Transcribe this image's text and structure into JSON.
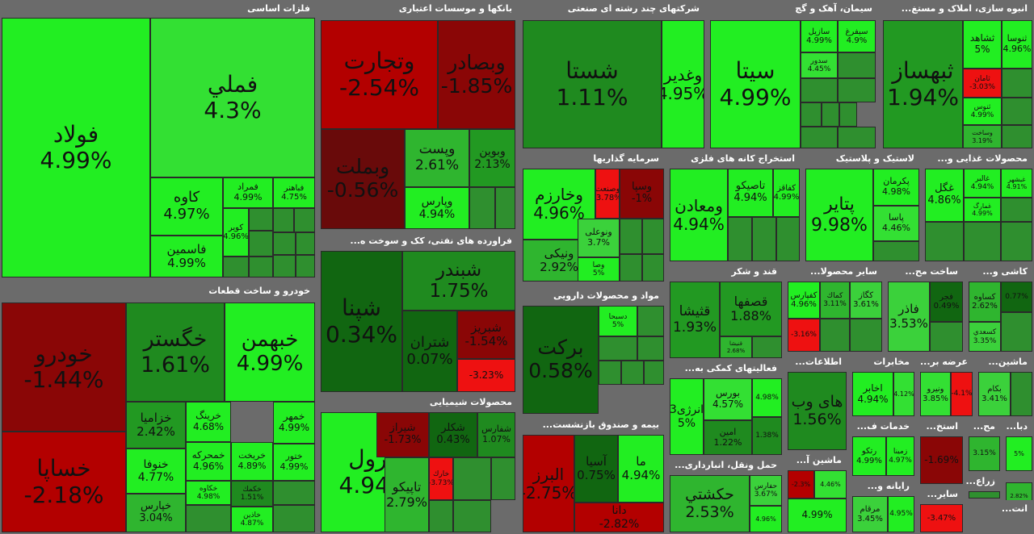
{
  "chart_data": {
    "type": "treemap",
    "sectors": [
      {
        "name": "فلزات اساسی",
        "tiles": [
          {
            "symbol": "فولاد",
            "change": 4.99
          },
          {
            "symbol": "فملي",
            "change": 4.3
          },
          {
            "symbol": "كاوه",
            "change": 4.97
          },
          {
            "symbol": "فاسمين",
            "change": 4.99
          },
          {
            "symbol": "فمراد",
            "change": 4.99
          },
          {
            "symbol": "فباهنر",
            "change": 4.75
          },
          {
            "symbol": "كوير",
            "change": 4.96
          },
          {
            "symbol": "",
            "change": null
          },
          {
            "symbol": "",
            "change": null
          },
          {
            "symbol": "",
            "change": null
          },
          {
            "symbol": "",
            "change": null
          },
          {
            "symbol": "",
            "change": null
          },
          {
            "symbol": "",
            "change": null
          },
          {
            "symbol": "",
            "change": null
          },
          {
            "symbol": "",
            "change": null
          },
          {
            "symbol": "",
            "change": null
          },
          {
            "symbol": "",
            "change": null
          }
        ]
      },
      {
        "name": "بانکها و موسسات اعتباری",
        "tiles": [
          {
            "symbol": "وتجارت",
            "change": -2.54
          },
          {
            "symbol": "وبصادر",
            "change": -1.85
          },
          {
            "symbol": "وبملت",
            "change": -0.56
          },
          {
            "symbol": "وپست",
            "change": 2.61
          },
          {
            "symbol": "وبوین",
            "change": 2.13
          },
          {
            "symbol": "وپارس",
            "change": 4.94
          },
          {
            "symbol": "",
            "change": null
          },
          {
            "symbol": "",
            "change": null
          }
        ]
      },
      {
        "name": "شرکتهای چند رشته ای صنعتی",
        "tiles": [
          {
            "symbol": "شستا",
            "change": 1.11
          },
          {
            "symbol": "وغدیر",
            "change": 4.95
          }
        ]
      },
      {
        "name": "سیمان، آهک و گچ",
        "tiles": [
          {
            "symbol": "سیتا",
            "change": 4.99
          },
          {
            "symbol": "سازیل",
            "change": 4.99
          },
          {
            "symbol": "سیفرغ",
            "change": 4.9
          },
          {
            "symbol": "سدور",
            "change": 4.45
          },
          {
            "symbol": "",
            "change": null
          },
          {
            "symbol": "",
            "change": null
          },
          {
            "symbol": "",
            "change": null
          },
          {
            "symbol": "",
            "change": null
          },
          {
            "symbol": "",
            "change": null
          },
          {
            "symbol": "",
            "change": null
          },
          {
            "symbol": "",
            "change": null
          },
          {
            "symbol": "",
            "change": null
          }
        ]
      },
      {
        "name": "انبوه سازی، املاک و مستغ...",
        "tiles": [
          {
            "symbol": "ثبهساز",
            "change": 1.94
          },
          {
            "symbol": "ثشاهد",
            "change": 5
          },
          {
            "symbol": "ثنوسا",
            "change": 4.96
          },
          {
            "symbol": "ثامان",
            "change": -3.03
          },
          {
            "symbol": "",
            "change": null
          },
          {
            "symbol": "ثنوس",
            "change": 4.99
          },
          {
            "symbol": "وساخت",
            "change": 3.19
          },
          {
            "symbol": "",
            "change": null
          },
          {
            "symbol": "",
            "change": null
          }
        ]
      },
      {
        "name": "سرمایه گذاریها",
        "tiles": [
          {
            "symbol": "وخارزم",
            "change": 4.96
          },
          {
            "symbol": "وصنعت",
            "change": -3.78
          },
          {
            "symbol": "وسپا",
            "change": -1.0
          },
          {
            "symbol": "ونیکی",
            "change": 2.92
          },
          {
            "symbol": "ونوعلی",
            "change": 3.7
          },
          {
            "symbol": "وصا",
            "change": 5
          },
          {
            "symbol": "",
            "change": null
          },
          {
            "symbol": "",
            "change": null
          },
          {
            "symbol": "",
            "change": null
          },
          {
            "symbol": "",
            "change": null
          }
        ]
      },
      {
        "name": "استخراج کانه های فلزی",
        "tiles": [
          {
            "symbol": "ومعادن",
            "change": 4.94
          },
          {
            "symbol": "تاصيكو",
            "change": 4.94
          },
          {
            "symbol": "كفاقز",
            "change": 4.99
          },
          {
            "symbol": "",
            "change": null
          },
          {
            "symbol": "",
            "change": null
          },
          {
            "symbol": "",
            "change": null
          }
        ]
      },
      {
        "name": "لاستیک و پلاستیک",
        "tiles": [
          {
            "symbol": "پتاير",
            "change": 9.98
          },
          {
            "symbol": "پكرمان",
            "change": 4.98
          },
          {
            "symbol": "پاسا",
            "change": 4.46
          },
          {
            "symbol": "",
            "change": null
          }
        ]
      },
      {
        "name": "محصولات غذایی و...",
        "tiles": [
          {
            "symbol": "غگل",
            "change": 4.86
          },
          {
            "symbol": "غالبر",
            "change": 4.94
          },
          {
            "symbol": "غبشهر",
            "change": 4.91
          },
          {
            "symbol": "غمارگ",
            "change": 4.99
          },
          {
            "symbol": "",
            "change": null
          },
          {
            "symbol": "",
            "change": null
          },
          {
            "symbol": "",
            "change": null
          },
          {
            "symbol": "",
            "change": null
          }
        ]
      },
      {
        "name": "خودرو و ساخت قطعات",
        "tiles": [
          {
            "symbol": "خودرو",
            "change": -1.44
          },
          {
            "symbol": "خساپا",
            "change": -2.18
          },
          {
            "symbol": "خگستر",
            "change": 1.61
          },
          {
            "symbol": "خبهمن",
            "change": 4.99
          },
          {
            "symbol": "خزامیا",
            "change": 2.42
          },
          {
            "symbol": "خرينگ",
            "change": 4.68
          },
          {
            "symbol": "خمهر",
            "change": 4.99
          },
          {
            "symbol": "خنوفا",
            "change": 4.77
          },
          {
            "symbol": "خمحركه",
            "change": 4.96
          },
          {
            "symbol": "خپارس",
            "change": 3.04
          },
          {
            "symbol": "خريخت",
            "change": 4.89
          },
          {
            "symbol": "خكمك",
            "change": 1.51
          },
          {
            "symbol": "ختور",
            "change": 4.99
          },
          {
            "symbol": "خاذين",
            "change": 4.87
          },
          {
            "symbol": "خكاوه",
            "change": 4.98
          },
          {
            "symbol": "",
            "change": null
          },
          {
            "symbol": "",
            "change": null
          },
          {
            "symbol": "",
            "change": null
          }
        ]
      },
      {
        "name": "فراورده های نفتی، کک و سوخت ه...",
        "tiles": [
          {
            "symbol": "شپنا",
            "change": 0.34
          },
          {
            "symbol": "شبندر",
            "change": 1.75
          },
          {
            "symbol": "شتران",
            "change": 0.07
          },
          {
            "symbol": "شبريز",
            "change": -1.54
          },
          {
            "symbol": "",
            "change": -3.23
          }
        ]
      },
      {
        "name": "مواد و محصولات دارویی",
        "tiles": [
          {
            "symbol": "بركت",
            "change": 0.58
          },
          {
            "symbol": "دسبحا",
            "change": 5
          },
          {
            "symbol": "",
            "change": null
          },
          {
            "symbol": "",
            "change": null
          },
          {
            "symbol": "",
            "change": null
          },
          {
            "symbol": "",
            "change": null
          },
          {
            "symbol": "",
            "change": null
          },
          {
            "symbol": "",
            "change": null
          }
        ]
      },
      {
        "name": "قند و شکر",
        "tiles": [
          {
            "symbol": "قثيشا",
            "change": 1.93
          },
          {
            "symbol": "قصفها",
            "change": 1.88
          },
          {
            "symbol": "قنيشا",
            "change": 2.68
          },
          {
            "symbol": "",
            "change": null
          }
        ]
      },
      {
        "name": "سایر محصولا...",
        "tiles": [
          {
            "symbol": "كفپارس",
            "change": 4.96
          },
          {
            "symbol": "كماك",
            "change": 3.11
          },
          {
            "symbol": "كگاز",
            "change": 3.61
          },
          {
            "symbol": "",
            "change": -3.16
          },
          {
            "symbol": "",
            "change": null
          },
          {
            "symbol": "",
            "change": null
          }
        ]
      },
      {
        "name": "ساخت مح...",
        "tiles": [
          {
            "symbol": "فاذر",
            "change": 3.53
          },
          {
            "symbol": "فجر",
            "change": 0.49
          },
          {
            "symbol": "",
            "change": null
          }
        ]
      },
      {
        "name": "کاشی و...",
        "tiles": [
          {
            "symbol": "كساوه",
            "change": 2.62
          },
          {
            "symbol": "كسعدي",
            "change": 3.35
          },
          {
            "symbol": "",
            "change": 0.77
          },
          {
            "symbol": "",
            "change": null
          }
        ]
      },
      {
        "name": "محصولات شیمیایی",
        "tiles": [
          {
            "symbol": "پترول",
            "change": 4.94
          },
          {
            "symbol": "شيراز",
            "change": -1.73
          },
          {
            "symbol": "شكلر",
            "change": 0.43
          },
          {
            "symbol": "شفارس",
            "change": 1.07
          },
          {
            "symbol": "تاپيكو",
            "change": 2.79
          },
          {
            "symbol": "خارك",
            "change": -3.73
          },
          {
            "symbol": "",
            "change": null
          },
          {
            "symbol": "",
            "change": null
          },
          {
            "symbol": "",
            "change": null
          },
          {
            "symbol": "",
            "change": null
          }
        ]
      },
      {
        "name": "بیمه و صندوق بازنشست...",
        "tiles": [
          {
            "symbol": "البرز",
            "change": -2.75
          },
          {
            "symbol": "آسيا",
            "change": 0.75
          },
          {
            "symbol": "ما",
            "change": 4.94
          },
          {
            "symbol": "دانا",
            "change": -2.82
          }
        ]
      },
      {
        "name": "فعالیتهای کمکی به...",
        "tiles": [
          {
            "symbol": "انرژی3",
            "change": 5
          },
          {
            "symbol": "بورس",
            "change": 4.57
          },
          {
            "symbol": "امين",
            "change": 1.22
          },
          {
            "symbol": "",
            "change": 4.98
          },
          {
            "symbol": "",
            "change": 1.38
          }
        ]
      },
      {
        "name": "حمل ونقل، انبارداری...",
        "tiles": [
          {
            "symbol": "حكشتي",
            "change": 2.53
          },
          {
            "symbol": "حفارس",
            "change": 3.67
          },
          {
            "symbol": "",
            "change": 4.96
          }
        ]
      },
      {
        "name": "اطلاعات...",
        "tiles": [
          {
            "symbol": "های وب",
            "change": 1.56
          }
        ]
      },
      {
        "name": "مخابرات",
        "tiles": [
          {
            "symbol": "اخابر",
            "change": 4.94
          },
          {
            "symbol": "",
            "change": 4.12
          }
        ]
      },
      {
        "name": "عرضه بر...",
        "tiles": [
          {
            "symbol": "ونيرو",
            "change": 3.85
          },
          {
            "symbol": "",
            "change": -4.1
          }
        ]
      },
      {
        "name": "ماشین...",
        "tiles": [
          {
            "symbol": "بكام",
            "change": 3.41
          },
          {
            "symbol": "",
            "change": null
          }
        ]
      },
      {
        "name": "خدمات ف...",
        "tiles": [
          {
            "symbol": "رتكو",
            "change": 4.99
          },
          {
            "symbol": "زمينا",
            "change": 4.97
          }
        ]
      },
      {
        "name": "استخ...",
        "tiles": [
          {
            "symbol": "",
            "change": -1.69
          }
        ]
      },
      {
        "name": "مح...",
        "tiles": [
          {
            "symbol": "",
            "change": 3.15
          }
        ]
      },
      {
        "name": "دبا...",
        "tiles": [
          {
            "symbol": "",
            "change": 5
          }
        ]
      },
      {
        "name": "ماشین آ...",
        "tiles": [
          {
            "symbol": "",
            "change": -2.3
          },
          {
            "symbol": "",
            "change": 4.46
          },
          {
            "symbol": "",
            "change": 4.99
          }
        ]
      },
      {
        "name": "رایانه و...",
        "tiles": [
          {
            "symbol": "مرقام",
            "change": 3.45
          },
          {
            "symbol": "",
            "change": 4.95
          }
        ]
      },
      {
        "name": "سایر...",
        "tiles": [
          {
            "symbol": "",
            "change": -3.47
          }
        ]
      },
      {
        "name": "زراع...",
        "tiles": [
          {
            "symbol": "",
            "change": null
          }
        ]
      },
      {
        "name": "",
        "tiles": [
          {
            "symbol": "",
            "change": 2.82
          }
        ]
      },
      {
        "name": "انت...",
        "tiles": []
      }
    ]
  }
}
